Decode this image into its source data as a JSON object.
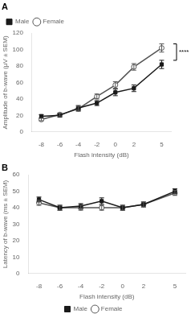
{
  "chart_data": [
    {
      "type": "line",
      "title": "A",
      "xlabel": "Flash intensity (dB)",
      "ylabel": "Amplitude of b-wave (μV ± SEM)",
      "x": [
        -8,
        -6,
        -4,
        -2,
        0,
        2,
        5
      ],
      "xlim": [
        -9,
        6
      ],
      "xticks": [
        -8,
        -6,
        -4,
        -2,
        0,
        2,
        5
      ],
      "ylim": [
        0,
        120
      ],
      "yticks": [
        0,
        20,
        40,
        60,
        80,
        100,
        120
      ],
      "grid": false,
      "legend": "upper left",
      "series": [
        {
          "name": "Male",
          "color": "#1a1a1a",
          "marker": "square",
          "values": [
            19,
            20,
            29,
            35,
            48,
            53,
            82
          ],
          "errors": [
            2,
            2,
            3,
            3,
            4,
            4,
            5
          ]
        },
        {
          "name": "Female",
          "color": "#555555",
          "marker": "circle",
          "values": [
            15,
            21,
            28,
            43,
            57,
            79,
            102
          ],
          "errors": [
            1.5,
            2,
            3,
            3,
            4,
            4,
            5
          ]
        }
      ],
      "annotations": [
        {
          "text": "****",
          "y": [
            87,
            107
          ]
        }
      ]
    },
    {
      "type": "line",
      "title": "B",
      "xlabel": "Flash intensity (dB)",
      "ylabel": "Latency of b-wave (ms ± SEM)",
      "x": [
        -8,
        -6,
        -4,
        -2,
        0,
        2,
        5
      ],
      "xlim": [
        -9,
        6
      ],
      "xticks": [
        -8,
        -6,
        -4,
        -2,
        0,
        2,
        5
      ],
      "ylim": [
        0,
        60
      ],
      "yticks": [
        0,
        10,
        20,
        30,
        40,
        50,
        60
      ],
      "grid": false,
      "legend": "lower center",
      "series": [
        {
          "name": "Male",
          "color": "#1a1a1a",
          "marker": "square",
          "values": [
            45,
            40,
            41,
            44,
            40,
            42,
            50
          ],
          "errors": [
            1.5,
            1.5,
            1.5,
            2,
            1.5,
            1.5,
            1.5
          ]
        },
        {
          "name": "Female",
          "color": "#555555",
          "marker": "circle",
          "values": [
            43,
            40,
            40,
            40,
            40,
            42,
            49
          ],
          "errors": [
            1.5,
            1.5,
            1.5,
            1.5,
            1.5,
            1.5,
            1.5
          ]
        }
      ]
    }
  ]
}
